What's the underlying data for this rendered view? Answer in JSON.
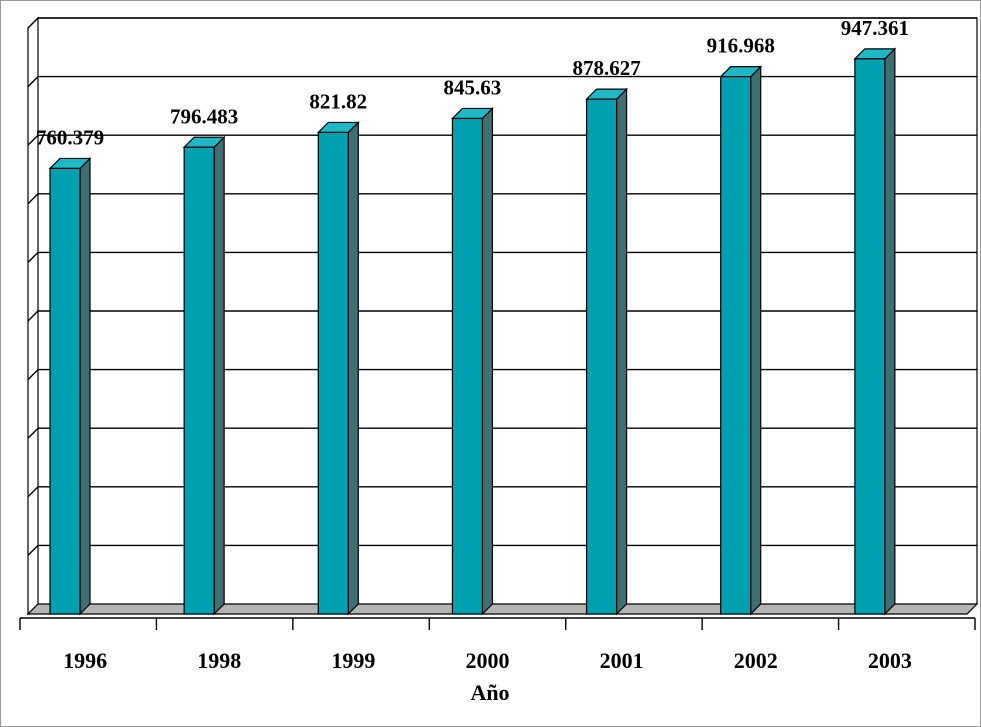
{
  "chart_data": {
    "type": "bar",
    "categories": [
      "1996",
      "1998",
      "1999",
      "2000",
      "2001",
      "2002",
      "2003"
    ],
    "values": [
      760.379,
      796.483,
      821.82,
      845.63,
      878.627,
      916.968,
      947.361
    ],
    "data_labels": [
      "760.379",
      "796.483",
      "821.82",
      "845.63",
      "878.627",
      "916.968",
      "947.361"
    ],
    "title": "",
    "xlabel": "Año",
    "ylabel": "",
    "ylim": [
      0,
      1000
    ],
    "y_gridlines": 10,
    "grid": true,
    "legend": "none",
    "three_d": true,
    "colors": {
      "bar_front": "#00A0B0",
      "bar_side": "#3F6F70",
      "bar_top": "#1FB8C6",
      "floor": "#B4B4B4",
      "grid": "#000000"
    }
  }
}
